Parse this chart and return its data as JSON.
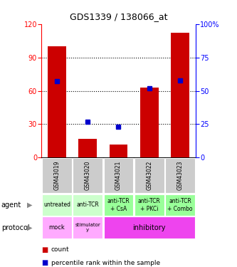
{
  "title": "GDS1339 / 138066_at",
  "samples": [
    "GSM43019",
    "GSM43020",
    "GSM43021",
    "GSM43022",
    "GSM43023"
  ],
  "counts": [
    100,
    17,
    12,
    63,
    112
  ],
  "percentiles": [
    57,
    27,
    23,
    52,
    58
  ],
  "left_ylim": [
    0,
    120
  ],
  "right_ylim": [
    0,
    100
  ],
  "left_yticks": [
    0,
    30,
    60,
    90,
    120
  ],
  "right_yticks": [
    0,
    25,
    50,
    75,
    100
  ],
  "right_yticklabels": [
    "0",
    "25",
    "50",
    "75",
    "100%"
  ],
  "bar_color": "#cc0000",
  "dot_color": "#0000cc",
  "agent_labels": [
    "untreated",
    "anti-TCR",
    "anti-TCR\n+ CsA",
    "anti-TCR\n+ PKCi",
    "anti-TCR\n+ Combo"
  ],
  "agent_colors": [
    "#ccffcc",
    "#ccffcc",
    "#99ff99",
    "#99ff99",
    "#99ff99"
  ],
  "protocol_mock_color": "#ffaaff",
  "protocol_stim_color": "#ffaaff",
  "protocol_inhib_color": "#ee44ee",
  "sample_bg_color": "#cccccc",
  "legend_count_color": "#cc0000",
  "legend_pct_color": "#0000cc",
  "grid_yticks": [
    30,
    60,
    90
  ]
}
